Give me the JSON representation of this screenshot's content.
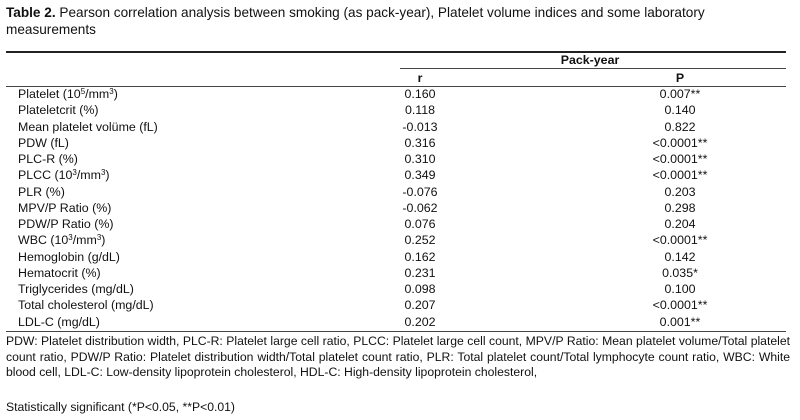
{
  "caption": {
    "label": "Table 2.",
    "text": " Pearson correlation analysis between  smoking (as pack-year), Platelet volume indices and  some  laboratory measurements"
  },
  "table": {
    "group_header": "Pack-year",
    "col_r": "r",
    "col_p": "P",
    "rows": [
      {
        "label": "Platelet (10",
        "sup": "5",
        "label_end": "/mm",
        "sup2": "3",
        "label_tail": ")",
        "r": "0.160",
        "p": "0.007**"
      },
      {
        "label": "Plateletcrit (%)",
        "r": "0.118",
        "p": "0.140"
      },
      {
        "label": "Mean platelet volüme (fL)",
        "r": "-0.013",
        "p": "0.822"
      },
      {
        "label": "PDW (fL)",
        "r": "0.316",
        "p": "<0.0001**"
      },
      {
        "label": "PLC-R (%)",
        "r": "0.310",
        "p": "<0.0001**"
      },
      {
        "label": "PLCC (10",
        "sup": "3",
        "label_end": "/mm",
        "sup2": "3",
        "label_tail": ")",
        "r": "0.349",
        "p": "<0.0001**"
      },
      {
        "label": "PLR (%)",
        "r": "-0.076",
        "p": "0.203"
      },
      {
        "label": "MPV/P Ratio (%)",
        "r": "-0.062",
        "p": "0.298"
      },
      {
        "label": "PDW/P Ratio (%)",
        "r": "0.076",
        "p": "0.204"
      },
      {
        "label": "WBC (10",
        "sup": "3",
        "label_end": "/mm",
        "sup2": "3",
        "label_tail": ")",
        "r": "0.252",
        "p": "<0.0001**"
      },
      {
        "label": "Hemoglobin (g/dL)",
        "r": "0.162",
        "p": "0.142"
      },
      {
        "label": "Hematocrit (%)",
        "r": "0.231",
        "p": "0.035*"
      },
      {
        "label": "Triglycerides (mg/dL)",
        "r": "0.098",
        "p": "0.100"
      },
      {
        "label": "Total cholesterol (mg/dL)",
        "r": "0.207",
        "p": "<0.0001**"
      },
      {
        "label": "LDL-C (mg/dL)",
        "r": "0.202",
        "p": "0.001**"
      }
    ]
  },
  "footnote": "PDW: Platelet distribution width, PLC-R: Platelet large cell ratio, PLCC: Platelet large cell count, MPV/P Ratio: Mean platelet volume/Total platelet count ratio, PDW/P Ratio: Platelet distribution width/Total platelet count ratio,  PLR: Total platelet count/Total lymphocyte count ratio, WBC: White blood cell, LDL-C: Low-density lipoprotein cholesterol, HDL-C: High-density lipoprotein cholesterol,",
  "significance": "Statistically significant (*P<0.05,  **P<0.01)"
}
